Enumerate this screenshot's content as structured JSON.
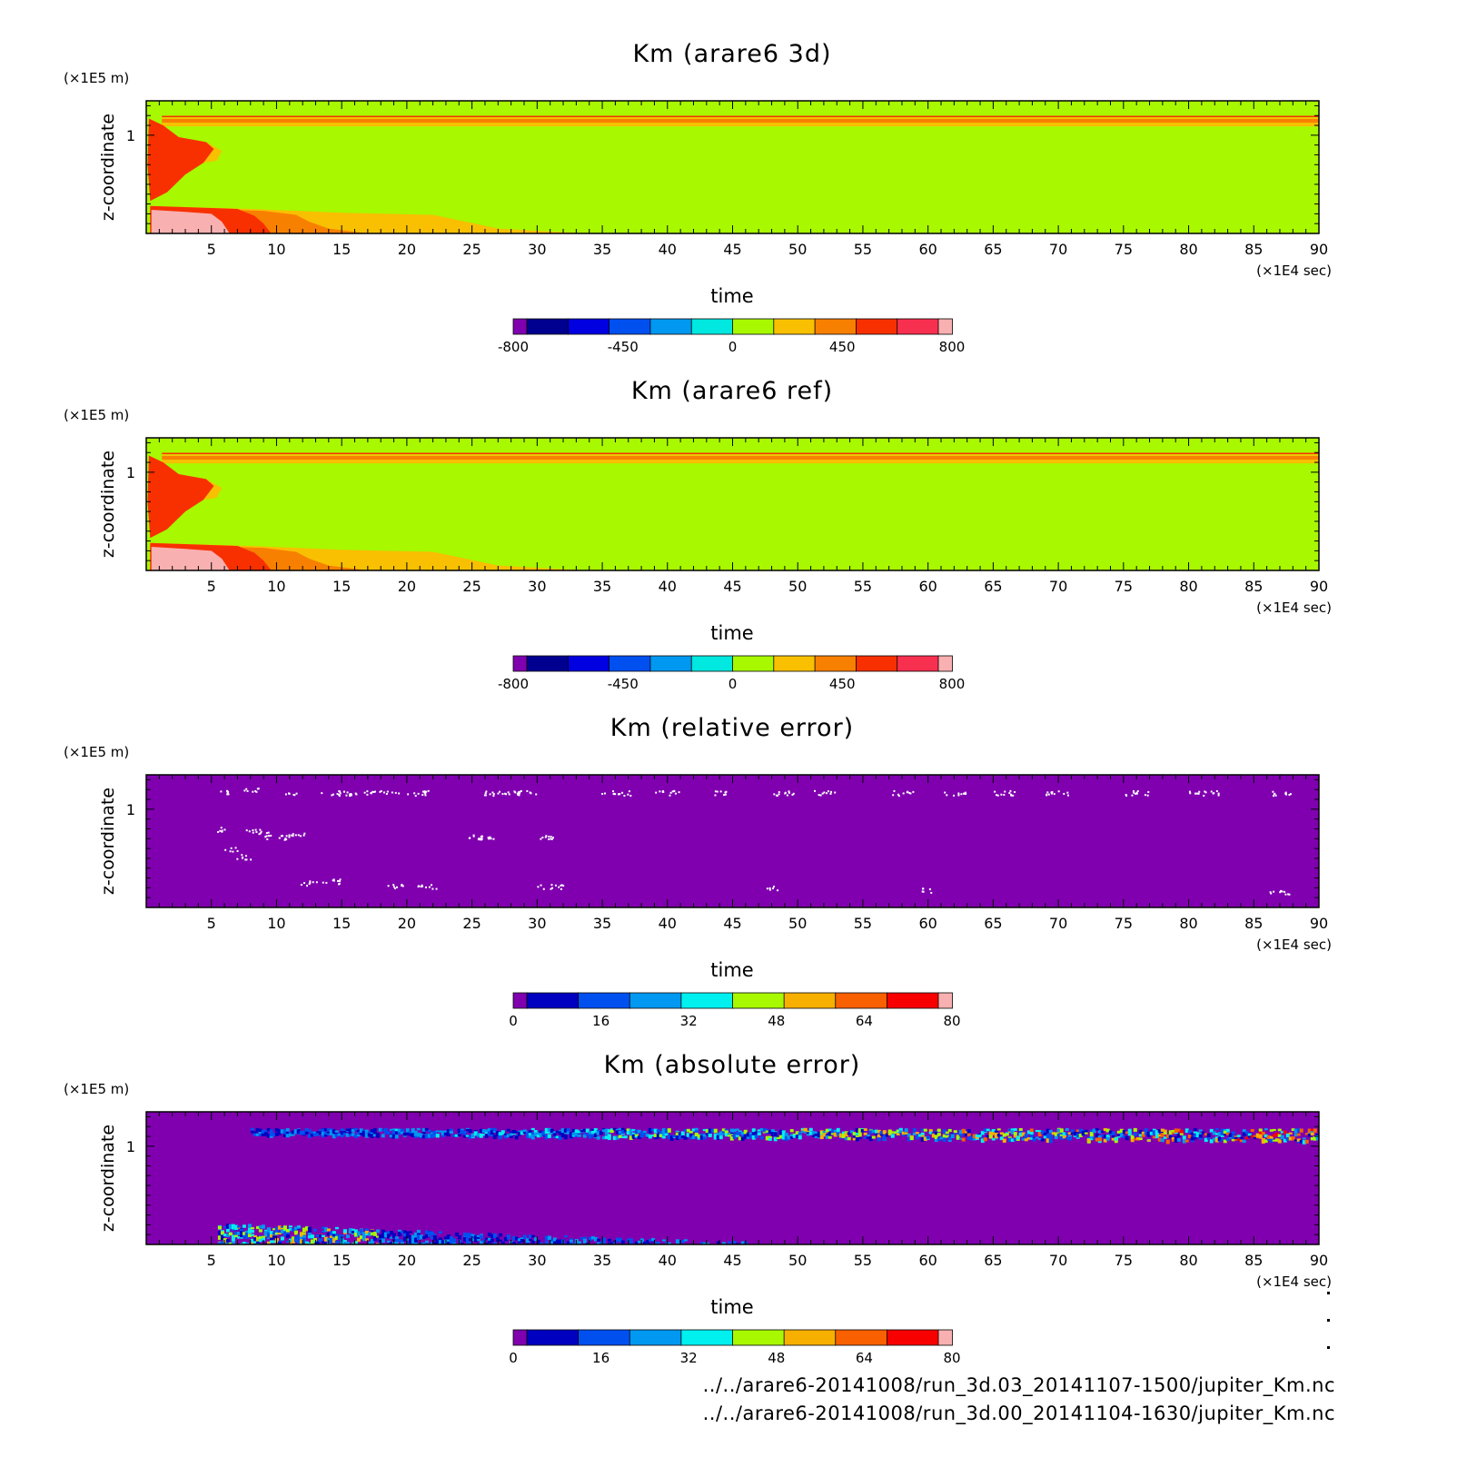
{
  "chart_data": [
    {
      "type": "heatmap",
      "title": "Km (arare6 3d)",
      "xlabel": "time",
      "ylabel": "z-coordinate",
      "x_unit": "(×1E4 sec)",
      "y_unit": "(×1E5 m)",
      "xlim": [
        0,
        90
      ],
      "ylim": [
        0,
        1.35
      ],
      "x_ticks": [
        "5",
        "10",
        "15",
        "20",
        "25",
        "30",
        "35",
        "40",
        "45",
        "50",
        "55",
        "60",
        "65",
        "70",
        "75",
        "80",
        "85",
        "90"
      ],
      "y_ticks": [
        "1"
      ],
      "colorbar": {
        "tick_labels": [
          "-800",
          "-450",
          "0",
          "450",
          "800"
        ],
        "colors": [
          "#8000b0",
          "#000090",
          "#0000e0",
          "#0050f0",
          "#0098f0",
          "#00e8e0",
          "#a8f800",
          "#f8c000",
          "#f88000",
          "#f83000",
          "#f83050",
          "#f8b0b0"
        ]
      },
      "description_regions": {
        "background_value_band": "0 to 160 (green)",
        "top_band_value_band": "160 to 450 (orange)",
        "early_bottom_value_band": "600 to 800 (red / pink)"
      }
    },
    {
      "type": "heatmap",
      "title": "Km (arare6 ref)",
      "xlabel": "time",
      "ylabel": "z-coordinate",
      "x_unit": "(×1E4 sec)",
      "y_unit": "(×1E5 m)",
      "xlim": [
        0,
        90
      ],
      "ylim": [
        0,
        1.35
      ],
      "x_ticks": [
        "5",
        "10",
        "15",
        "20",
        "25",
        "30",
        "35",
        "40",
        "45",
        "50",
        "55",
        "60",
        "65",
        "70",
        "75",
        "80",
        "85",
        "90"
      ],
      "y_ticks": [
        "1"
      ],
      "colorbar": {
        "tick_labels": [
          "-800",
          "-450",
          "0",
          "450",
          "800"
        ],
        "colors": [
          "#8000b0",
          "#000090",
          "#0000e0",
          "#0050f0",
          "#0098f0",
          "#00e8e0",
          "#a8f800",
          "#f8c000",
          "#f88000",
          "#f83000",
          "#f83050",
          "#f8b0b0"
        ]
      }
    },
    {
      "type": "heatmap",
      "title": "Km (relative error)",
      "xlabel": "time",
      "ylabel": "z-coordinate",
      "x_unit": "(×1E4 sec)",
      "y_unit": "(×1E5 m)",
      "xlim": [
        0,
        90
      ],
      "ylim": [
        0,
        1.35
      ],
      "x_ticks": [
        "5",
        "10",
        "15",
        "20",
        "25",
        "30",
        "35",
        "40",
        "45",
        "50",
        "55",
        "60",
        "65",
        "70",
        "75",
        "80",
        "85",
        "90"
      ],
      "y_ticks": [
        "1"
      ],
      "colorbar": {
        "tick_labels": [
          "0",
          "16",
          "32",
          "48",
          "64",
          "80"
        ],
        "colors": [
          "#8000b0",
          "#0000c0",
          "#0050f0",
          "#0098f0",
          "#00f0f0",
          "#a8f800",
          "#f8b000",
          "#f86000",
          "#f80000",
          "#f8b0b0"
        ]
      }
    },
    {
      "type": "heatmap",
      "title": "Km (absolute error)",
      "xlabel": "time",
      "ylabel": "z-coordinate",
      "x_unit": "(×1E4 sec)",
      "y_unit": "(×1E5 m)",
      "xlim": [
        0,
        90
      ],
      "ylim": [
        0,
        1.35
      ],
      "x_ticks": [
        "5",
        "10",
        "15",
        "20",
        "25",
        "30",
        "35",
        "40",
        "45",
        "50",
        "55",
        "60",
        "65",
        "70",
        "75",
        "80",
        "85",
        "90"
      ],
      "y_ticks": [
        "1"
      ],
      "colorbar": {
        "tick_labels": [
          "0",
          "16",
          "32",
          "48",
          "64",
          "80"
        ],
        "colors": [
          "#8000b0",
          "#0000c0",
          "#0050f0",
          "#0098f0",
          "#00f0f0",
          "#a8f800",
          "#f8b000",
          "#f86000",
          "#f80000",
          "#f8b0b0"
        ]
      }
    }
  ],
  "footer": {
    "file_1": "../../arare6-20141008/run_3d.03_20141107-1500/jupiter_Km.nc",
    "file_2": "../../arare6-20141008/run_3d.00_20141104-1630/jupiter_Km.nc"
  }
}
